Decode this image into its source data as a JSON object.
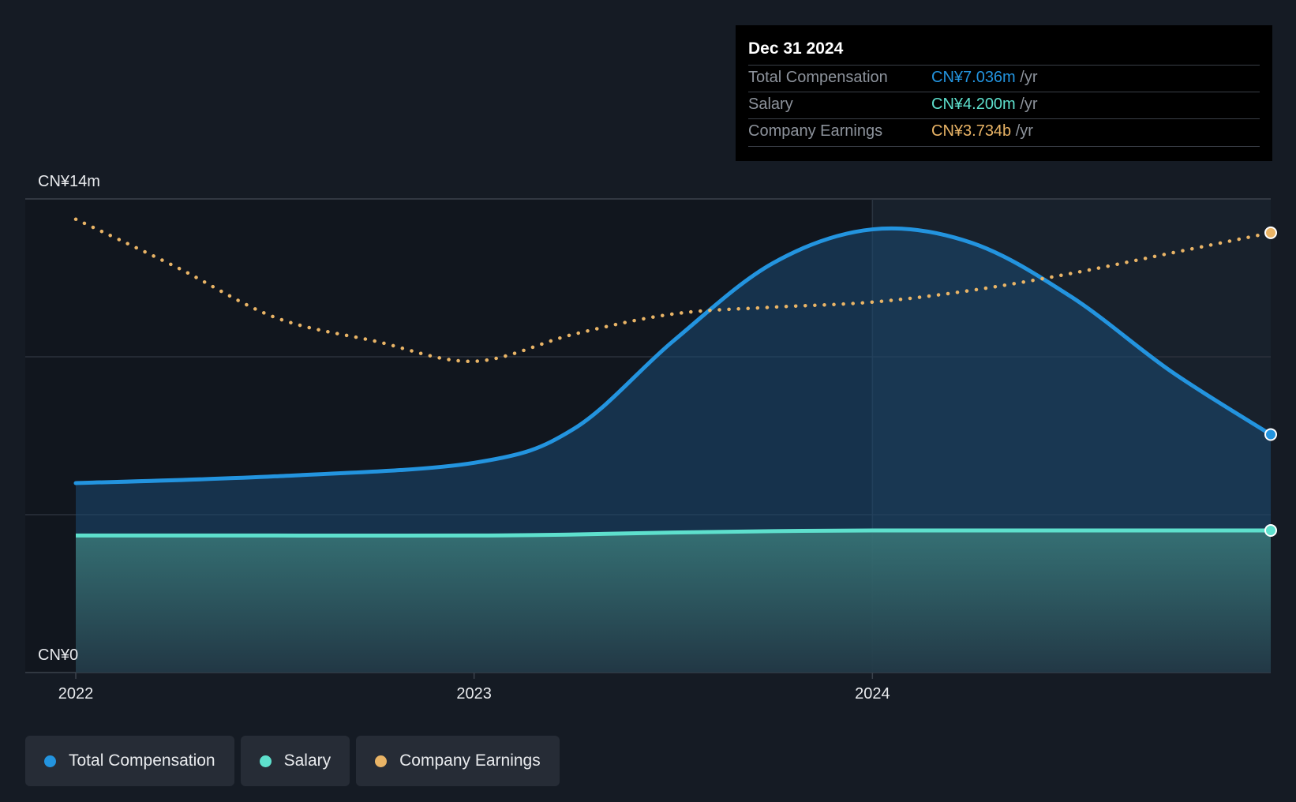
{
  "chart_data": {
    "type": "area",
    "title": "",
    "ylim": [
      0,
      14
    ],
    "yunit": "CN¥m",
    "y_tick_labels": {
      "max": "CN¥14m",
      "min": "CN¥0"
    },
    "x_ticks": [
      "2022",
      "2023",
      "2024"
    ],
    "series": [
      {
        "name": "Total Compensation",
        "color": "#2394df",
        "x": [
          2022.0,
          2022.5,
          2023.0,
          2023.25,
          2023.5,
          2023.75,
          2024.0,
          2024.25,
          2024.5,
          2024.75,
          2025.0
        ],
        "values": [
          5.6,
          5.8,
          6.2,
          7.2,
          9.8,
          12.1,
          13.1,
          12.7,
          11.1,
          8.9,
          7.036
        ]
      },
      {
        "name": "Salary",
        "color": "#5ee0cd",
        "x": [
          2022.0,
          2022.5,
          2023.0,
          2023.25,
          2023.5,
          2023.75,
          2024.0,
          2024.5,
          2025.0
        ],
        "values": [
          4.05,
          4.05,
          4.05,
          4.08,
          4.14,
          4.18,
          4.2,
          4.2,
          4.2
        ]
      },
      {
        "name": "Company Earnings",
        "color": "#e9b466",
        "style": "dotted",
        "x": [
          2022.0,
          2022.25,
          2022.5,
          2022.75,
          2023.0,
          2023.25,
          2023.5,
          2023.75,
          2024.0,
          2024.25,
          2024.5,
          2024.75,
          2025.0
        ],
        "values": [
          13.4,
          12.0,
          10.5,
          9.8,
          9.2,
          10.0,
          10.6,
          10.8,
          10.95,
          11.3,
          11.8,
          12.4,
          13.0
        ]
      }
    ]
  },
  "tooltip": {
    "date": "Dec 31 2024",
    "rows": [
      {
        "label": "Total Compensation",
        "value": "CN¥7.036m",
        "unit": "/yr",
        "color": "#2394df"
      },
      {
        "label": "Salary",
        "value": "CN¥4.200m",
        "unit": "/yr",
        "color": "#5ee0cd"
      },
      {
        "label": "Company Earnings",
        "value": "CN¥3.734b",
        "unit": "/yr",
        "color": "#e9b466"
      }
    ]
  },
  "legend": [
    {
      "label": "Total Compensation",
      "color": "#2394df"
    },
    {
      "label": "Salary",
      "color": "#5ee0cd"
    },
    {
      "label": "Company Earnings",
      "color": "#e9b466"
    }
  ]
}
